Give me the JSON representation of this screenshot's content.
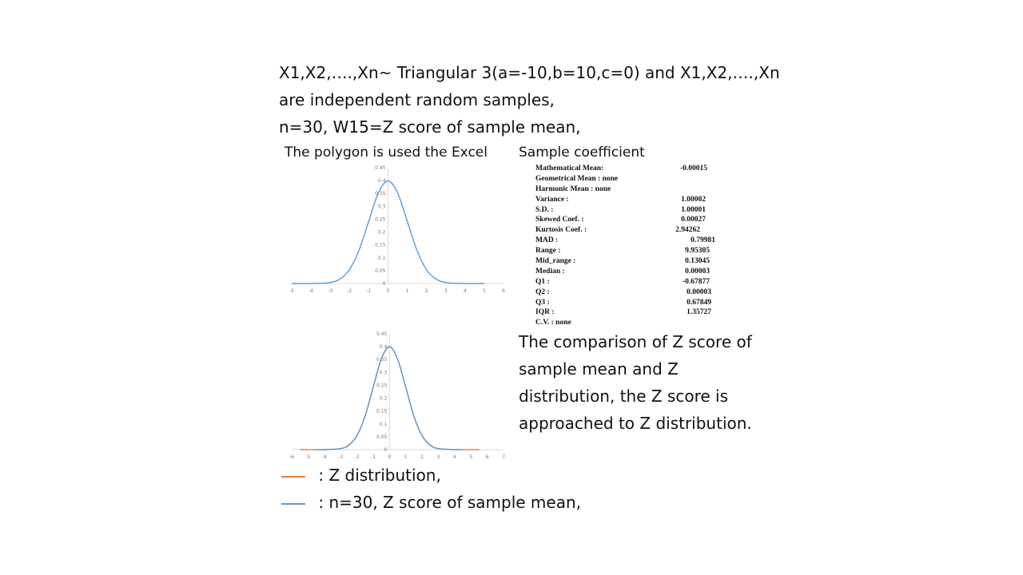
{
  "heading": {
    "line1": "X1,X2,….,Xn~ Triangular 3(a=-10,b=10,c=0) and X1,X2,….,Xn",
    "line2": "are independent random samples,",
    "line3": "n=30, W15=Z score of sample mean,"
  },
  "polygon_label": "The polygon is used the Excel",
  "coef_title": "Sample coefficient",
  "stats": [
    {
      "name": "Mathematical Mean:",
      "value": "-0.00015"
    },
    {
      "name": " Geometrical Mean : none",
      "value": ""
    },
    {
      "name": " Harmonic Mean      : none",
      "value": ""
    },
    {
      "name": " Variance               :",
      "value": "1.00002"
    },
    {
      "name": " S.D.                        :",
      "value": "1.00001"
    },
    {
      "name": " Skewed Coef.          :",
      "value": "0.00027"
    },
    {
      "name": " Kurtosis Coef.     :",
      "value": "2.94262"
    },
    {
      "name": " MAD                             :",
      "value": "0.79981"
    },
    {
      "name": " Range                       :",
      "value": "9.95305"
    },
    {
      "name": " Mid_range                 :",
      "value": "0.13045"
    },
    {
      "name": " Median                     :",
      "value": "0.00003"
    },
    {
      "name": "  Q1                            :",
      "value": "-0.67877"
    },
    {
      "name": "  Q2                            :",
      "value": "0.00003"
    },
    {
      "name": "  Q3                            :",
      "value": "0.67849"
    },
    {
      "name": " IQR                           :",
      "value": "1.35727"
    },
    {
      "name": " C.V.                  : none",
      "value": ""
    }
  ],
  "comparison": "The comparison of Z score of sample mean and Z distribution, the Z score is approached to Z distribution.",
  "legend": [
    {
      "label": " : Z distribution,",
      "color": "#ED7D31"
    },
    {
      "label": " :   n=30, Z score of sample mean,",
      "color": "#5B9BD5"
    }
  ],
  "chart_data": [
    {
      "type": "line",
      "xlim": [
        -5,
        6
      ],
      "ylim": [
        0,
        0.45
      ],
      "x_ticks": [
        "-5",
        "-4",
        "-3",
        "-2",
        "-1",
        "0",
        "1",
        "2",
        "3",
        "4",
        "5",
        "6"
      ],
      "y_ticks": [
        "0",
        "0.05",
        "0.1",
        "0.15",
        "0.2",
        "0.25",
        "0.3",
        "0.35",
        "0.4",
        "0.45"
      ],
      "series": [
        {
          "color": "#5B9BD5",
          "x": [
            -5,
            -4.5,
            -4,
            -3.5,
            -3,
            -2.5,
            -2,
            -1.5,
            -1,
            -0.5,
            0,
            0.5,
            1,
            1.5,
            2,
            2.5,
            3,
            3.5,
            4,
            4.5,
            5
          ],
          "y": [
            0,
            0,
            0,
            0.001,
            0.004,
            0.017,
            0.054,
            0.13,
            0.242,
            0.352,
            0.399,
            0.352,
            0.242,
            0.13,
            0.054,
            0.017,
            0.004,
            0.001,
            0,
            0,
            0
          ]
        }
      ]
    },
    {
      "type": "line",
      "xlim": [
        -6,
        7
      ],
      "ylim": [
        0,
        0.45
      ],
      "x_ticks": [
        "-6",
        "-5",
        "-4",
        "-3",
        "-2",
        "-1",
        "0",
        "1",
        "2",
        "3",
        "4",
        "5",
        "6",
        "7"
      ],
      "y_ticks": [
        "0",
        "0.05",
        "0.1",
        "0.15",
        "0.2",
        "0.25",
        "0.3",
        "0.35",
        "0.4",
        "0.45"
      ],
      "series": [
        {
          "color": "#ED7D31",
          "x": [
            -5.5,
            -4,
            -3,
            -2.5,
            -2,
            -1.5,
            -1,
            -0.5,
            0,
            0.5,
            1,
            1.5,
            2,
            2.5,
            3,
            4,
            5.5
          ],
          "y": [
            0,
            0,
            0.004,
            0.018,
            0.054,
            0.13,
            0.242,
            0.352,
            0.399,
            0.352,
            0.242,
            0.13,
            0.054,
            0.018,
            0.004,
            0,
            0
          ]
        },
        {
          "color": "#5B9BD5",
          "x": [
            -4.5,
            -4,
            -3,
            -2.5,
            -2,
            -1.5,
            -1,
            -0.5,
            0,
            0.5,
            1,
            1.5,
            2,
            2.5,
            3,
            4,
            4.5
          ],
          "y": [
            0,
            0,
            0.004,
            0.017,
            0.054,
            0.13,
            0.242,
            0.353,
            0.4,
            0.352,
            0.242,
            0.13,
            0.054,
            0.017,
            0.004,
            0,
            0
          ]
        }
      ]
    }
  ]
}
